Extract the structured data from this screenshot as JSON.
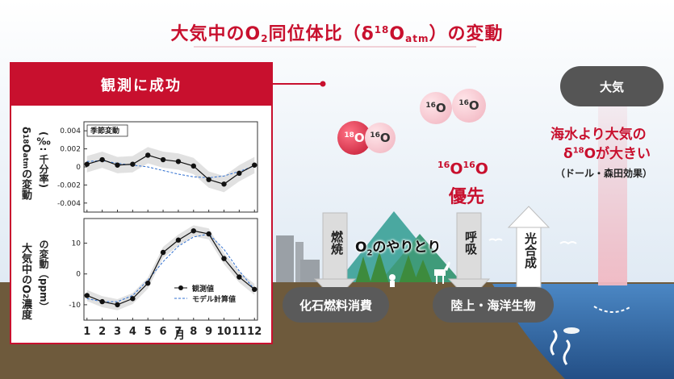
{
  "title": {
    "main": "大気中のO",
    "sub2": "2",
    "mid": "同位体比（δ",
    "sup": "18",
    "O": "O",
    "atm": "atm",
    "end": "）の変動"
  },
  "panel": {
    "header": "観測に成功",
    "legend_season": "季節変動",
    "month_label": "月",
    "y1_label_a": "δ",
    "y1_label_sup": "18",
    "y1_label_b": "O",
    "y1_label_sub": "atm",
    "y1_label_c": "の変動",
    "y1_label_d": "(‰: 千分率)",
    "y2_label_a": "大気中のO",
    "y2_label_sub": "2",
    "y2_label_b": "濃度",
    "y2_label_c": "の変動（ppm）",
    "legend_obs": "観測値",
    "legend_model": "モデル計算値"
  },
  "chart_data": [
    {
      "type": "line",
      "title": "",
      "xlabel": "月",
      "x": [
        1,
        2,
        3,
        4,
        5,
        6,
        7,
        8,
        9,
        10,
        11,
        12
      ],
      "ylim": [
        -0.005,
        0.005
      ],
      "yticks": [
        "0.004",
        "0.002",
        "0",
        "-0.002",
        "-0.004"
      ],
      "series": [
        {
          "name": "観測値",
          "values": [
            0.0003,
            0.0008,
            0.0002,
            0.0003,
            0.0013,
            0.0008,
            0.0006,
            0.0001,
            -0.0014,
            -0.0019,
            -0.0007,
            0.0002
          ]
        },
        {
          "name": "モデル計算値",
          "values": [
            0.0006,
            0.0007,
            0.0004,
            0.0002,
            0.0,
            -0.0004,
            -0.0008,
            -0.0011,
            -0.0012,
            -0.001,
            -0.0005,
            0.0001
          ]
        }
      ]
    },
    {
      "type": "line",
      "title": "",
      "xlabel": "月",
      "x": [
        1,
        2,
        3,
        4,
        5,
        6,
        7,
        8,
        9,
        10,
        11,
        12
      ],
      "ylim": [
        -15,
        18
      ],
      "yticks": [
        "10",
        "0",
        "-10"
      ],
      "series": [
        {
          "name": "観測値",
          "values": [
            -7,
            -9,
            -10,
            -8,
            -3,
            7,
            11,
            14,
            13,
            5,
            -1,
            -5
          ]
        },
        {
          "name": "モデル計算値",
          "values": [
            -8,
            -9,
            -9,
            -7,
            -2,
            4,
            9,
            12,
            13,
            8,
            1,
            -5
          ]
        }
      ]
    }
  ],
  "molecules": {
    "left_big": "18",
    "left_big_o": "O",
    "left_small": "16",
    "left_small_o": "O",
    "right_a": "16",
    "right_a_o": "O",
    "right_b": "16",
    "right_b_o": "O"
  },
  "preference": {
    "sup1": "16",
    "o1": "O",
    "sup2": "16",
    "o2": "O",
    "word": "優先"
  },
  "exchange_label": "O",
  "exchange_sub": "2",
  "exchange_rest": "のやりとり",
  "arrows": {
    "burn": "燃焼",
    "resp": "呼吸",
    "photo": "光合成"
  },
  "boxes": {
    "fossil": "化石燃料消費",
    "bio": "陸上・海洋生物",
    "atmos": "大気"
  },
  "dole": {
    "line1": "海水より大気の",
    "l2a": "δ",
    "l2sup": "18",
    "l2b": "Oが大きい",
    "line3": "（ドール・森田効果）"
  },
  "colors": {
    "accent": "#c8102e",
    "box": "#5a5a5a",
    "sky": "#dfe9f2",
    "sea": "#3a79b9",
    "ground": "#6e5a3c"
  }
}
